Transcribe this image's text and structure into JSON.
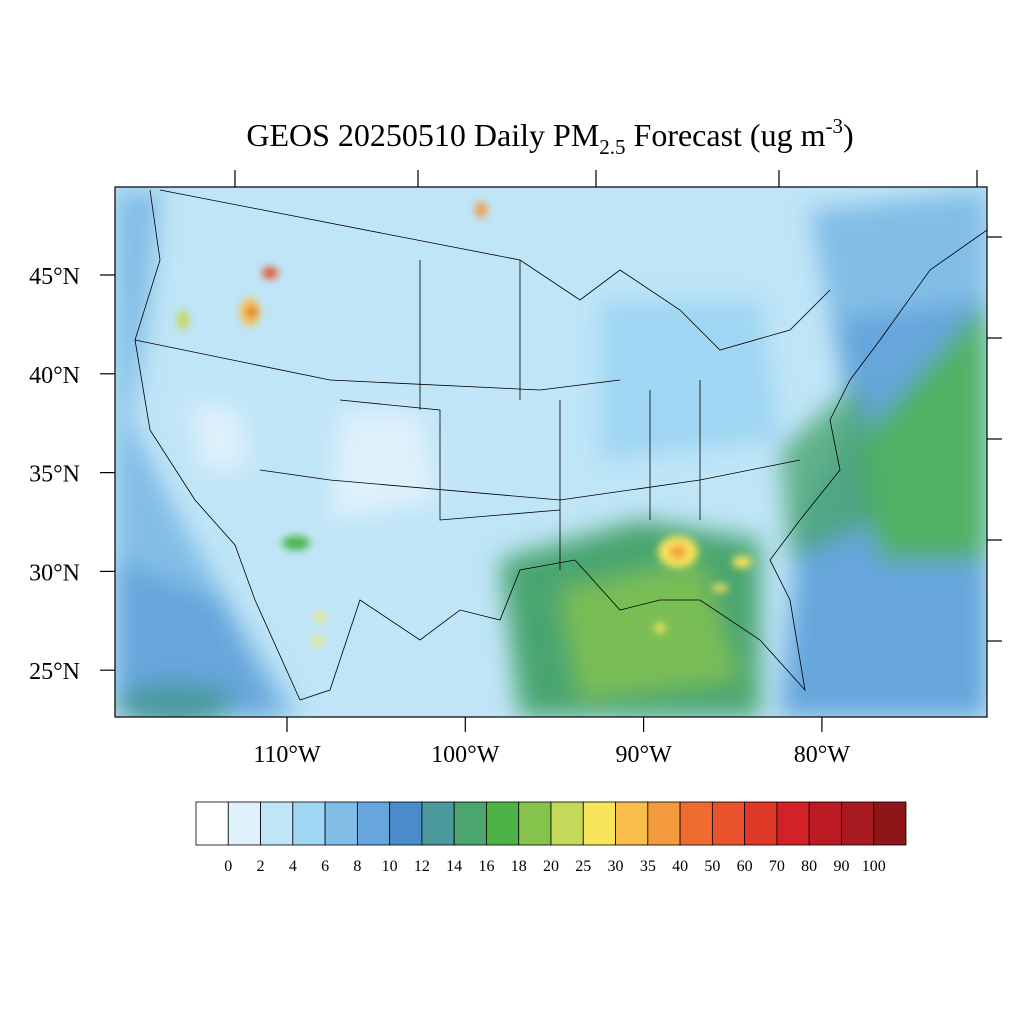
{
  "title": {
    "main": "GEOS 20250510 Daily PM",
    "sub": "2.5",
    "rest": " Forecast (ug m",
    "sup": "-3",
    "end": ")"
  },
  "map": {
    "lat_labels": [
      "45°N",
      "40°N",
      "35°N",
      "30°N",
      "25°N"
    ],
    "lon_labels": [
      "110°W",
      "100°W",
      "90°W",
      "80°W"
    ]
  },
  "colorbar": {
    "labels": [
      0,
      2,
      4,
      6,
      8,
      10,
      12,
      14,
      16,
      18,
      20,
      25,
      30,
      35,
      40,
      50,
      60,
      70,
      80,
      90,
      100
    ],
    "colors": [
      "#ffffff",
      "#dff1fb",
      "#bfe5f7",
      "#9fd6f3",
      "#81bde6",
      "#66a6dc",
      "#4a8bc9",
      "#4a9a9b",
      "#4aa56f",
      "#4cb447",
      "#84c44d",
      "#c4d85a",
      "#f8e65a",
      "#f7bf4a",
      "#f39a3c",
      "#f06c2e",
      "#e8532b",
      "#df3a28",
      "#d32128",
      "#bc1b23",
      "#a81a1f",
      "#8e1619"
    ]
  }
}
